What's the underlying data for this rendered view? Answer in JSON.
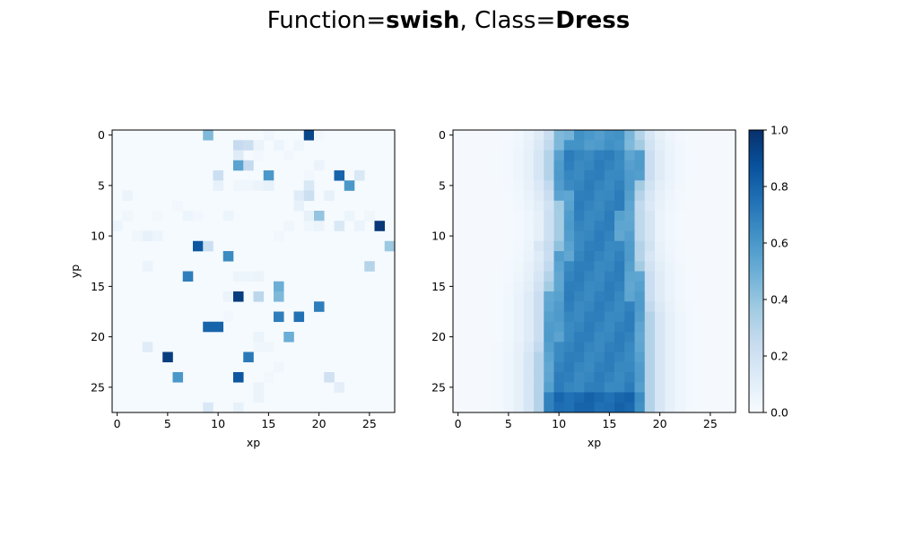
{
  "figure": {
    "title_prefix": "Function=",
    "function_name": "swish",
    "title_mid": ", Class=",
    "class_name": "Dress"
  },
  "chart_data": [
    {
      "type": "heatmap",
      "xlabel": "xp",
      "ylabel": "yp",
      "x_ticks": [
        0,
        5,
        10,
        15,
        20,
        25
      ],
      "y_ticks": [
        0,
        5,
        10,
        15,
        20,
        25
      ],
      "grid_size": 28,
      "colormap": "Blues",
      "cells": [
        [
          0,
          9,
          0.45
        ],
        [
          0,
          19,
          0.92
        ],
        [
          0,
          15,
          0.04
        ],
        [
          0,
          20,
          0.03
        ],
        [
          1,
          12,
          0.25
        ],
        [
          1,
          13,
          0.22
        ],
        [
          1,
          14,
          0.06
        ],
        [
          1,
          16,
          0.05
        ],
        [
          1,
          18,
          0.04
        ],
        [
          2,
          12,
          0.12
        ],
        [
          2,
          14,
          0.03
        ],
        [
          2,
          17,
          0.03
        ],
        [
          3,
          12,
          0.55
        ],
        [
          3,
          13,
          0.25
        ],
        [
          3,
          20,
          0.06
        ],
        [
          4,
          10,
          0.22
        ],
        [
          4,
          15,
          0.6
        ],
        [
          4,
          22,
          0.8
        ],
        [
          4,
          24,
          0.15
        ],
        [
          4,
          19,
          0.03
        ],
        [
          5,
          10,
          0.08
        ],
        [
          5,
          12,
          0.04
        ],
        [
          5,
          13,
          0.04
        ],
        [
          5,
          14,
          0.06
        ],
        [
          5,
          15,
          0.08
        ],
        [
          5,
          19,
          0.15
        ],
        [
          5,
          23,
          0.6
        ],
        [
          6,
          1,
          0.06
        ],
        [
          6,
          18,
          0.12
        ],
        [
          6,
          19,
          0.22
        ],
        [
          6,
          21,
          0.08
        ],
        [
          7,
          6,
          0.03
        ],
        [
          7,
          18,
          0.08
        ],
        [
          8,
          1,
          0.04
        ],
        [
          8,
          4,
          0.03
        ],
        [
          8,
          7,
          0.05
        ],
        [
          8,
          8,
          0.03
        ],
        [
          8,
          11,
          0.05
        ],
        [
          8,
          19,
          0.08
        ],
        [
          8,
          20,
          0.4
        ],
        [
          8,
          23,
          0.05
        ],
        [
          8,
          25,
          0.04
        ],
        [
          9,
          0,
          0.05
        ],
        [
          9,
          17,
          0.04
        ],
        [
          9,
          19,
          0.04
        ],
        [
          9,
          20,
          0.06
        ],
        [
          9,
          22,
          0.15
        ],
        [
          9,
          24,
          0.06
        ],
        [
          9,
          26,
          0.97
        ],
        [
          10,
          3,
          0.08
        ],
        [
          10,
          2,
          0.04
        ],
        [
          10,
          4,
          0.05
        ],
        [
          10,
          16,
          0.03
        ],
        [
          11,
          8,
          0.85
        ],
        [
          11,
          9,
          0.22
        ],
        [
          11,
          27,
          0.38
        ],
        [
          12,
          11,
          0.65
        ],
        [
          13,
          3,
          0.06
        ],
        [
          13,
          25,
          0.3
        ],
        [
          14,
          7,
          0.7
        ],
        [
          14,
          12,
          0.05
        ],
        [
          14,
          13,
          0.05
        ],
        [
          14,
          14,
          0.06
        ],
        [
          15,
          16,
          0.5
        ],
        [
          16,
          11,
          0.06
        ],
        [
          16,
          12,
          0.95
        ],
        [
          16,
          14,
          0.28
        ],
        [
          16,
          16,
          0.45
        ],
        [
          17,
          20,
          0.7
        ],
        [
          18,
          11,
          0.03
        ],
        [
          18,
          16,
          0.7
        ],
        [
          18,
          18,
          0.75
        ],
        [
          19,
          9,
          0.8
        ],
        [
          19,
          10,
          0.8
        ],
        [
          20,
          14,
          0.06
        ],
        [
          20,
          17,
          0.5
        ],
        [
          21,
          3,
          0.12
        ],
        [
          21,
          14,
          0.04
        ],
        [
          21,
          15,
          0.04
        ],
        [
          22,
          5,
          0.95
        ],
        [
          22,
          13,
          0.72
        ],
        [
          23,
          16,
          0.04
        ],
        [
          24,
          6,
          0.6
        ],
        [
          24,
          12,
          0.85
        ],
        [
          24,
          21,
          0.2
        ],
        [
          24,
          15,
          0.03
        ],
        [
          25,
          22,
          0.1
        ],
        [
          25,
          14,
          0.06
        ],
        [
          26,
          14,
          0.06
        ],
        [
          27,
          9,
          0.15
        ],
        [
          27,
          12,
          0.08
        ]
      ]
    },
    {
      "type": "heatmap",
      "xlabel": "xp",
      "ylabel": "",
      "x_ticks": [
        0,
        5,
        10,
        15,
        20,
        25
      ],
      "y_ticks": [
        0,
        5,
        10,
        15,
        20,
        25
      ],
      "grid_size": 28,
      "colormap": "Blues",
      "rows": [
        {
          "y": 0,
          "left": 10.0,
          "right": 17.5
        },
        {
          "y": 2,
          "left": 9.5,
          "right": 18.0
        },
        {
          "y": 4,
          "left": 9.5,
          "right": 18.0
        },
        {
          "y": 6,
          "left": 10.0,
          "right": 17.5
        },
        {
          "y": 8,
          "left": 10.5,
          "right": 17.0
        },
        {
          "y": 10,
          "left": 10.5,
          "right": 17.0
        },
        {
          "y": 12,
          "left": 10.0,
          "right": 17.5
        },
        {
          "y": 14,
          "left": 9.5,
          "right": 18.0
        },
        {
          "y": 16,
          "left": 9.0,
          "right": 18.0
        },
        {
          "y": 18,
          "left": 9.0,
          "right": 18.5
        },
        {
          "y": 20,
          "left": 9.0,
          "right": 18.5
        },
        {
          "y": 22,
          "left": 8.5,
          "right": 18.5
        },
        {
          "y": 24,
          "left": 8.5,
          "right": 18.5
        },
        {
          "y": 26,
          "left": 8.5,
          "right": 18.5
        },
        {
          "y": 27,
          "left": 8.5,
          "right": 18.5
        }
      ],
      "core_value": 0.68,
      "bottom_rows_value": 0.78
    }
  ],
  "colorbar": {
    "ticks": [
      "0.0",
      "0.2",
      "0.4",
      "0.6",
      "0.8",
      "1.0"
    ],
    "range": [
      0,
      1
    ]
  }
}
